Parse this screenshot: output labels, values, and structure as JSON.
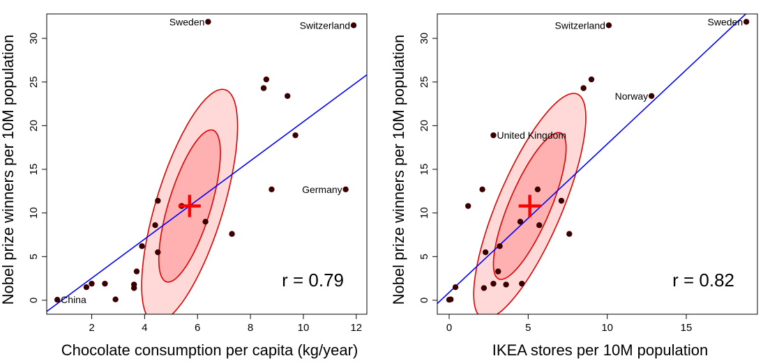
{
  "chart_data": [
    {
      "type": "scatter",
      "xlabel": "Chocolate consumption per capita (kg/year)",
      "ylabel": "Nobel prize winners per 10M population",
      "xlim": [
        0.3,
        12.4
      ],
      "ylim": [
        -1.6,
        32.8
      ],
      "xticks": [
        2,
        4,
        6,
        8,
        10,
        12
      ],
      "yticks": [
        0,
        5,
        10,
        15,
        20,
        25,
        30
      ],
      "r_text": "r =  0.79",
      "centroid": [
        5.7,
        10.8
      ],
      "regression": {
        "intercept": -1.95,
        "slope": 2.24
      },
      "ellipses": {
        "center": [
          5.7,
          10.8
        ],
        "outer": {
          "a": 4.6,
          "b": 1.27,
          "angle_deg": 73
        },
        "inner": {
          "a": 3.0,
          "b": 0.8,
          "angle_deg": 73
        }
      },
      "points": [
        {
          "x": 0.7,
          "y": 0.06,
          "label": "China"
        },
        {
          "x": 1.8,
          "y": 1.5
        },
        {
          "x": 2.0,
          "y": 1.9
        },
        {
          "x": 2.5,
          "y": 1.9
        },
        {
          "x": 2.9,
          "y": 0.1
        },
        {
          "x": 3.6,
          "y": 1.4
        },
        {
          "x": 3.6,
          "y": 1.8
        },
        {
          "x": 3.7,
          "y": 3.3
        },
        {
          "x": 3.9,
          "y": 6.2
        },
        {
          "x": 4.4,
          "y": 8.6
        },
        {
          "x": 4.5,
          "y": 5.5
        },
        {
          "x": 4.5,
          "y": 11.4
        },
        {
          "x": 5.4,
          "y": 10.8
        },
        {
          "x": 6.3,
          "y": 9.0
        },
        {
          "x": 7.3,
          "y": 7.6
        },
        {
          "x": 8.5,
          "y": 24.3
        },
        {
          "x": 8.6,
          "y": 25.3
        },
        {
          "x": 8.8,
          "y": 12.7
        },
        {
          "x": 9.4,
          "y": 23.4
        },
        {
          "x": 9.7,
          "y": 18.9
        },
        {
          "x": 6.4,
          "y": 31.9,
          "label": "Sweden"
        },
        {
          "x": 11.6,
          "y": 12.7,
          "label": "Germany"
        },
        {
          "x": 11.9,
          "y": 31.5,
          "label": "Switzerland"
        }
      ]
    },
    {
      "type": "scatter",
      "xlabel": "IKEA stores per 10M population",
      "ylabel": "Nobel prize winners per 10M population",
      "xlim": [
        -0.75,
        19.5
      ],
      "ylim": [
        -1.6,
        32.8
      ],
      "xticks": [
        0,
        5,
        10,
        15
      ],
      "yticks": [
        0,
        5,
        10,
        15,
        20,
        25,
        30
      ],
      "r_text": "r =  0.82",
      "centroid": [
        5.1,
        10.8
      ],
      "regression": {
        "intercept": 0.9,
        "slope": 1.7
      },
      "ellipses": {
        "center": [
          5.1,
          10.8
        ],
        "outer": {
          "a": 4.6,
          "b": 1.22,
          "angle_deg": 67
        },
        "inner": {
          "a": 3.0,
          "b": 0.78,
          "angle_deg": 67
        }
      },
      "points": [
        {
          "x": 0.0,
          "y": 0.06
        },
        {
          "x": 0.1,
          "y": 0.1
        },
        {
          "x": 0.4,
          "y": 1.5
        },
        {
          "x": 1.2,
          "y": 10.8
        },
        {
          "x": 2.1,
          "y": 12.7
        },
        {
          "x": 2.2,
          "y": 1.4
        },
        {
          "x": 2.3,
          "y": 5.5
        },
        {
          "x": 2.8,
          "y": 1.9
        },
        {
          "x": 3.1,
          "y": 3.3
        },
        {
          "x": 3.2,
          "y": 6.2
        },
        {
          "x": 3.6,
          "y": 1.8
        },
        {
          "x": 4.5,
          "y": 9.0
        },
        {
          "x": 4.6,
          "y": 1.9
        },
        {
          "x": 5.6,
          "y": 12.7
        },
        {
          "x": 5.7,
          "y": 8.6
        },
        {
          "x": 7.1,
          "y": 11.4
        },
        {
          "x": 7.6,
          "y": 7.6
        },
        {
          "x": 8.5,
          "y": 24.3
        },
        {
          "x": 9.0,
          "y": 25.3
        },
        {
          "x": 2.8,
          "y": 18.9,
          "label": "United Kingdom"
        },
        {
          "x": 10.1,
          "y": 31.5,
          "label": "Switzerland"
        },
        {
          "x": 12.8,
          "y": 23.4,
          "label": "Norway"
        },
        {
          "x": 18.8,
          "y": 31.9,
          "label": "Sweden"
        }
      ]
    }
  ],
  "style": {
    "point_color": "#3a0000",
    "line_color": "#0000ff",
    "ellipse_stroke": "#e00000",
    "ellipse_fill_outer": "#ffd8d8",
    "ellipse_fill_inner": "#ffb0b0",
    "centroid_color": "#ff0000"
  }
}
